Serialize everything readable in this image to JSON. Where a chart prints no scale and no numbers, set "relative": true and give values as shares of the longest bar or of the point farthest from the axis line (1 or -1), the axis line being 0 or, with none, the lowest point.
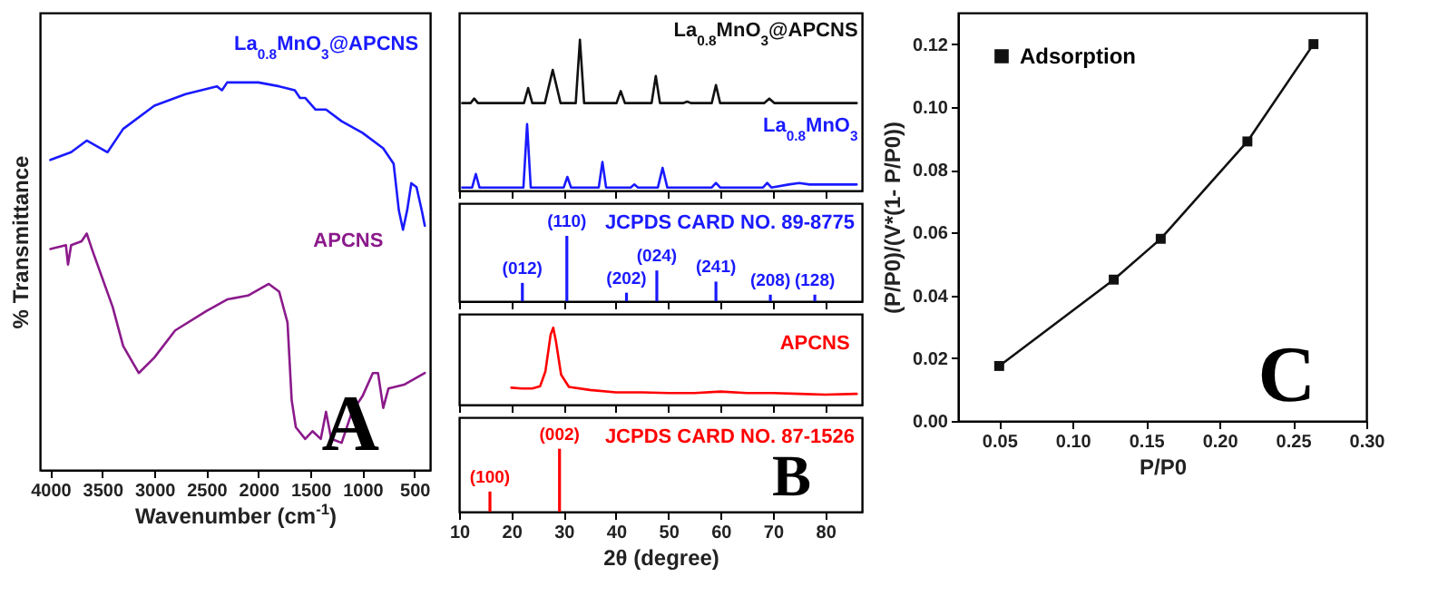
{
  "chart_data": [
    {
      "type": "line",
      "relative": true,
      "xlabel": "Wavenumber (cm$^{-1}$)",
      "ylabel": "% Transmittance",
      "xlim": [
        4100,
        350
      ],
      "xticks": [
        4000,
        3500,
        3000,
        2500,
        2000,
        1500,
        1000,
        500
      ],
      "tick_labels": "x",
      "annotations": [
        "A"
      ],
      "series": [
        {
          "name": "La$_{0.8}$MnO$_{3}$@APCNS",
          "color": "#1a1aff",
          "x": [
            4000,
            3800,
            3650,
            3450,
            3300,
            3000,
            2700,
            2400,
            2350,
            2300,
            2000,
            1800,
            1650,
            1600,
            1550,
            1450,
            1350,
            1200,
            1000,
            800,
            700,
            650,
            610,
            570,
            530,
            480,
            430,
            400
          ],
          "values": [
            0.8,
            0.82,
            0.85,
            0.82,
            0.88,
            0.94,
            0.97,
            0.99,
            0.98,
            1,
            1,
            0.99,
            0.98,
            0.96,
            0.96,
            0.93,
            0.93,
            0.9,
            0.87,
            0.83,
            0.79,
            0.67,
            0.62,
            0.67,
            0.74,
            0.73,
            0.67,
            0.63
          ]
        },
        {
          "name": "APCNS",
          "color": "#8b1a8b",
          "x": [
            4000,
            3850,
            3830,
            3800,
            3700,
            3650,
            3600,
            3400,
            3300,
            3150,
            3000,
            2800,
            2500,
            2300,
            2100,
            1900,
            1800,
            1720,
            1680,
            1640,
            1550,
            1480,
            1400,
            1350,
            1300,
            1200,
            1100,
            1000,
            900,
            850,
            800,
            750,
            600,
            400
          ],
          "values": [
            0.57,
            0.58,
            0.53,
            0.58,
            0.59,
            0.61,
            0.57,
            0.42,
            0.32,
            0.25,
            0.29,
            0.36,
            0.41,
            0.44,
            0.45,
            0.48,
            0.46,
            0.38,
            0.18,
            0.11,
            0.08,
            0.1,
            0.08,
            0.15,
            0.08,
            0.07,
            0.15,
            0.19,
            0.25,
            0.25,
            0.16,
            0.21,
            0.22,
            0.25
          ]
        }
      ]
    },
    {
      "type": "line",
      "relative": true,
      "xlim": [
        10,
        87
      ],
      "xticks": [
        10,
        20,
        30,
        40,
        50,
        60,
        70,
        80
      ],
      "tick_labels": false,
      "series": [
        {
          "name": "La$_{0.8}$MnO$_{3}$@APCNS",
          "color": "#111111",
          "x": [
            10.6,
            12.2,
            12.9,
            13.6,
            22.4,
            23.2,
            24.0,
            26.4,
            27.9,
            29.4,
            32.3,
            33.1,
            33.9,
            40.1,
            40.9,
            41.7,
            46.8,
            47.6,
            48.4,
            52.8,
            53.6,
            54.4,
            58.3,
            59.1,
            59.9,
            68.3,
            69.3,
            70.3,
            86
          ],
          "values": [
            0.58,
            0.58,
            0.61,
            0.58,
            0.58,
            0.68,
            0.58,
            0.58,
            0.8,
            0.58,
            0.58,
            1,
            0.58,
            0.58,
            0.66,
            0.58,
            0.58,
            0.76,
            0.58,
            0.58,
            0.59,
            0.58,
            0.58,
            0.7,
            0.58,
            0.58,
            0.61,
            0.58,
            0.58
          ]
        },
        {
          "name": "La$_{0.8}$MnO$_{3}$",
          "color": "#1a1aff",
          "x": [
            10.6,
            12.5,
            13.2,
            13.9,
            22.3,
            23.0,
            23.7,
            30.0,
            30.7,
            31.4,
            36.7,
            37.4,
            38.1,
            42.8,
            43.5,
            44.2,
            48.0,
            48.9,
            49.8,
            58.3,
            59.1,
            59.9,
            68.1,
            68.9,
            69.7,
            73.0,
            75.0,
            77.0,
            86
          ],
          "values": [
            0.02,
            0.02,
            0.11,
            0.02,
            0.02,
            0.44,
            0.02,
            0.02,
            0.09,
            0.02,
            0.02,
            0.19,
            0.02,
            0.02,
            0.04,
            0.02,
            0.02,
            0.15,
            0.02,
            0.02,
            0.05,
            0.02,
            0.02,
            0.05,
            0.02,
            0.04,
            0.05,
            0.04,
            0.04
          ]
        }
      ]
    },
    {
      "type": "bar",
      "relative": true,
      "title": "JCPDS CARD NO. 89-8775",
      "xlim": [
        10,
        87
      ],
      "xticks": [
        10,
        20,
        30,
        40,
        50,
        60,
        70,
        80
      ],
      "tick_labels": false,
      "x": [
        22.1,
        30.6,
        42.0,
        47.8,
        59.1,
        69.5,
        78
      ],
      "series": [
        {
          "color": "#1a1aff",
          "values": [
            0.28,
            1,
            0.13,
            0.47,
            0.3,
            0.1,
            0.1
          ]
        }
      ],
      "annotations": [
        {
          "text": "(012)",
          "x": 22.1,
          "y": 0.28
        },
        {
          "text": "(110)",
          "x": 30.6,
          "y": 1
        },
        {
          "text": "(202)",
          "x": 42.0,
          "y": 0.13
        },
        {
          "text": "(024)",
          "x": 47.8,
          "y": 0.47
        },
        {
          "text": "(241)",
          "x": 59.1,
          "y": 0.3
        },
        {
          "text": "(208)",
          "x": 69.5,
          "y": 0.1
        },
        {
          "text": "(128)",
          "x": 78,
          "y": 0.1
        }
      ]
    },
    {
      "type": "line",
      "relative": true,
      "xlim": [
        10,
        87
      ],
      "xticks": [
        10,
        20,
        30,
        40,
        50,
        60,
        70,
        80
      ],
      "tick_labels": false,
      "series": [
        {
          "name": "APCNS",
          "color": "#ff0000",
          "x": [
            20,
            22,
            24,
            25.5,
            26.5,
            27.5,
            28,
            28.5,
            29.5,
            31,
            35,
            40,
            45,
            50,
            55,
            60,
            65,
            70,
            75,
            80,
            86
          ],
          "values": [
            0.22,
            0.21,
            0.21,
            0.24,
            0.43,
            0.91,
            1,
            0.83,
            0.39,
            0.23,
            0.19,
            0.16,
            0.16,
            0.15,
            0.15,
            0.17,
            0.15,
            0.15,
            0.14,
            0.13,
            0.14
          ]
        }
      ]
    },
    {
      "type": "bar",
      "relative": true,
      "title": "JCPDS CARD NO. 87-1526",
      "xlabel": "2θ (degree)",
      "xlim": [
        10,
        87
      ],
      "xticks": [
        10,
        20,
        30,
        40,
        50,
        60,
        70,
        80
      ],
      "tick_labels": "x",
      "x": [
        15.9,
        29.2
      ],
      "series": [
        {
          "color": "#ff0000",
          "values": [
            0.32,
            1
          ]
        }
      ],
      "annotations": [
        {
          "text": "(100)",
          "x": 15.9,
          "y": 0.32
        },
        {
          "text": "(002)",
          "x": 29.2,
          "y": 1
        },
        "B"
      ]
    },
    {
      "type": "line",
      "xlabel": "P/P0",
      "ylabel": "(P/P0)/(V*(1- P/P0))",
      "xlim": [
        0.022,
        0.3
      ],
      "ylim": [
        0,
        0.13
      ],
      "xticks": [
        {
          "value": 0.05,
          "label": "0.05"
        },
        {
          "value": 0.1,
          "label": "0.10"
        },
        {
          "value": 0.15,
          "label": "0.15"
        },
        {
          "value": 0.2,
          "label": "0.20"
        },
        {
          "value": 0.25,
          "label": "0.25"
        },
        {
          "value": 0.3,
          "label": "0.30"
        }
      ],
      "yticks": [
        {
          "value": 0,
          "label": "0.00"
        },
        {
          "value": 0.02,
          "label": "0.02"
        },
        {
          "value": 0.04,
          "label": "0.04"
        },
        {
          "value": 0.06,
          "label": "0.06"
        },
        {
          "value": 0.08,
          "label": "0.08"
        },
        {
          "value": 0.1,
          "label": "0.10"
        },
        {
          "value": 0.12,
          "label": "0.12"
        }
      ],
      "marker": "square",
      "legend": "top left",
      "annotations": [
        "C"
      ],
      "x": [
        0.05,
        0.128,
        0.16,
        0.219,
        0.264
      ],
      "series": [
        {
          "name": "Adsorption",
          "color": "#111111",
          "values": [
            0.0175,
            0.045,
            0.058,
            0.089,
            0.12
          ]
        }
      ]
    }
  ]
}
